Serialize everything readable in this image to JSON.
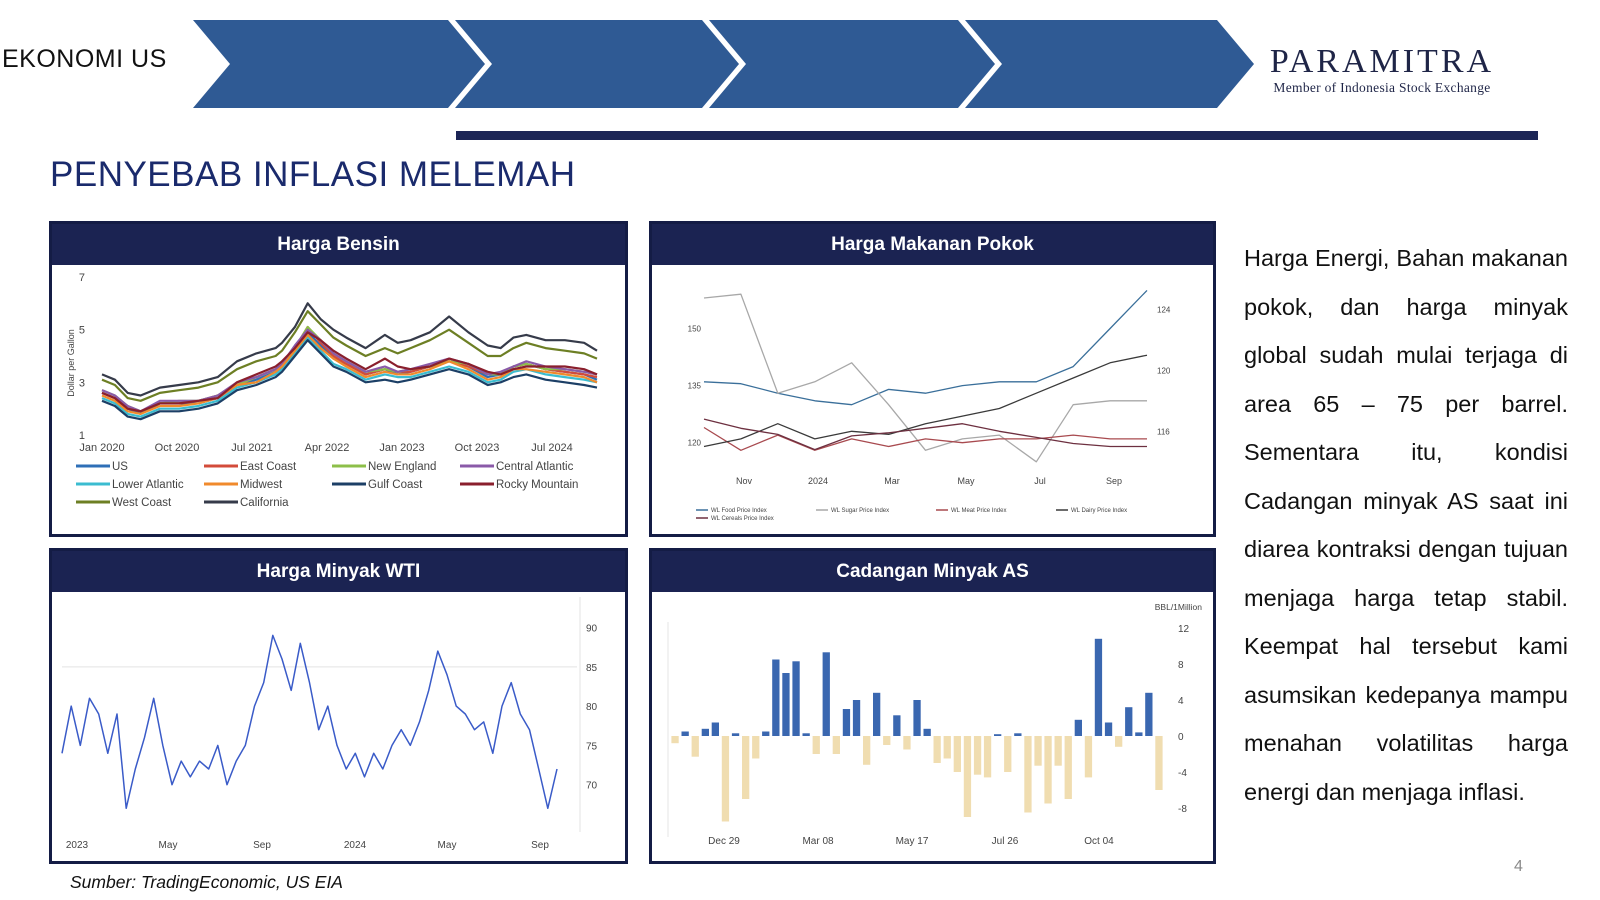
{
  "header": {
    "section": "EKONOMI US",
    "brand_name": "PARAMITRA",
    "brand_sub": "Member of Indonesia Stock Exchange",
    "chevron_color": "#2f5a94",
    "rule_color": "#1c2556"
  },
  "title": "PENYEBAB INFLASI MELEMAH",
  "panels": {
    "bensin": {
      "header": "Harga Bensin",
      "chart_data": {
        "type": "line",
        "ylabel": "Dollar per Gallon",
        "yticks": [
          "7",
          "5",
          "3",
          "1"
        ],
        "ylim": [
          1,
          7
        ],
        "xticks": [
          "Jan 2020",
          "Oct 2020",
          "Jul 2021",
          "Apr 2022",
          "Jan 2023",
          "Oct 2023",
          "Jul 2024"
        ],
        "x": [
          0,
          2,
          4,
          6,
          9,
          12,
          15,
          18,
          21,
          24,
          27,
          28,
          30,
          32,
          34,
          36,
          38,
          41,
          44,
          46,
          48,
          51,
          54,
          57,
          60,
          62,
          64,
          66,
          69,
          72,
          75,
          77
        ],
        "series": [
          {
            "name": "US",
            "color": "#2e6fb7",
            "values": [
              2.6,
              2.4,
              2.0,
              1.8,
              2.2,
              2.2,
              2.2,
              2.4,
              2.9,
              3.1,
              3.4,
              3.6,
              4.2,
              4.9,
              4.4,
              3.9,
              3.7,
              3.3,
              3.5,
              3.3,
              3.4,
              3.6,
              3.8,
              3.6,
              3.2,
              3.3,
              3.6,
              3.7,
              3.5,
              3.4,
              3.3,
              3.1
            ]
          },
          {
            "name": "East Coast",
            "color": "#d34b3a",
            "values": [
              2.6,
              2.4,
              2.0,
              1.9,
              2.2,
              2.2,
              2.3,
              2.5,
              2.9,
              3.2,
              3.5,
              3.7,
              4.3,
              5.1,
              4.5,
              4.0,
              3.7,
              3.3,
              3.5,
              3.4,
              3.4,
              3.6,
              3.8,
              3.6,
              3.3,
              3.3,
              3.6,
              3.7,
              3.5,
              3.4,
              3.3,
              3.2
            ]
          },
          {
            "name": "New England",
            "color": "#8dbf49",
            "values": [
              2.7,
              2.5,
              2.1,
              1.9,
              2.2,
              2.3,
              2.3,
              2.5,
              2.9,
              3.2,
              3.5,
              3.7,
              4.3,
              5.1,
              4.6,
              4.1,
              3.8,
              3.4,
              3.5,
              3.4,
              3.5,
              3.6,
              3.8,
              3.7,
              3.3,
              3.3,
              3.6,
              3.7,
              3.5,
              3.5,
              3.4,
              3.3
            ]
          },
          {
            "name": "Central Atlantic",
            "color": "#8a5aa8",
            "values": [
              2.7,
              2.5,
              2.1,
              1.9,
              2.3,
              2.3,
              2.3,
              2.5,
              3.0,
              3.2,
              3.5,
              3.7,
              4.4,
              5.0,
              4.6,
              4.1,
              3.8,
              3.4,
              3.6,
              3.4,
              3.5,
              3.7,
              3.9,
              3.7,
              3.3,
              3.4,
              3.6,
              3.8,
              3.6,
              3.5,
              3.4,
              3.3
            ]
          },
          {
            "name": "Lower Atlantic",
            "color": "#3bbcd0",
            "values": [
              2.4,
              2.2,
              1.8,
              1.7,
              2.0,
              2.0,
              2.1,
              2.3,
              2.8,
              3.0,
              3.3,
              3.5,
              4.1,
              4.7,
              4.2,
              3.7,
              3.5,
              3.1,
              3.3,
              3.2,
              3.2,
              3.4,
              3.6,
              3.4,
              3.0,
              3.1,
              3.4,
              3.5,
              3.3,
              3.2,
              3.1,
              3.0
            ]
          },
          {
            "name": "Midwest",
            "color": "#f08a2c",
            "values": [
              2.5,
              2.3,
              1.9,
              1.8,
              2.1,
              2.1,
              2.2,
              2.4,
              2.9,
              3.0,
              3.4,
              3.6,
              4.2,
              4.8,
              4.3,
              3.9,
              3.6,
              3.2,
              3.4,
              3.3,
              3.3,
              3.5,
              3.8,
              3.5,
              3.1,
              3.2,
              3.5,
              3.5,
              3.4,
              3.3,
              3.2,
              3.0
            ]
          },
          {
            "name": "Gulf Coast",
            "color": "#1c3f66",
            "values": [
              2.3,
              2.1,
              1.7,
              1.6,
              1.9,
              1.9,
              2.0,
              2.2,
              2.7,
              2.9,
              3.2,
              3.4,
              4.0,
              4.6,
              4.1,
              3.6,
              3.4,
              3.0,
              3.1,
              3.0,
              3.1,
              3.3,
              3.5,
              3.3,
              2.9,
              3.0,
              3.2,
              3.3,
              3.1,
              3.0,
              2.9,
              2.8
            ]
          },
          {
            "name": "Rocky Mountain",
            "color": "#8a1f2d",
            "values": [
              2.6,
              2.4,
              2.0,
              1.9,
              2.2,
              2.2,
              2.3,
              2.4,
              3.0,
              3.3,
              3.6,
              3.8,
              4.3,
              4.9,
              4.6,
              4.2,
              3.9,
              3.5,
              3.9,
              3.6,
              3.5,
              3.6,
              3.9,
              3.7,
              3.4,
              3.3,
              3.5,
              3.6,
              3.6,
              3.6,
              3.5,
              3.3
            ]
          },
          {
            "name": "West Coast",
            "color": "#6d7f24",
            "values": [
              3.1,
              2.9,
              2.4,
              2.3,
              2.6,
              2.7,
              2.8,
              3.0,
              3.5,
              3.8,
              4.0,
              4.2,
              4.9,
              5.7,
              5.2,
              4.7,
              4.4,
              4.0,
              4.3,
              4.1,
              4.3,
              4.6,
              5.0,
              4.5,
              4.0,
              4.0,
              4.3,
              4.5,
              4.3,
              4.2,
              4.1,
              3.9
            ]
          },
          {
            "name": "California",
            "color": "#363b4a",
            "values": [
              3.3,
              3.1,
              2.6,
              2.5,
              2.8,
              2.9,
              3.0,
              3.2,
              3.8,
              4.1,
              4.3,
              4.5,
              5.1,
              6.0,
              5.4,
              5.0,
              4.7,
              4.3,
              4.8,
              4.5,
              4.6,
              4.9,
              5.5,
              4.9,
              4.4,
              4.3,
              4.7,
              4.8,
              4.6,
              4.6,
              4.5,
              4.2
            ]
          }
        ]
      }
    },
    "makanan": {
      "header": "Harga Makanan Pokok",
      "chart_data": {
        "type": "line",
        "yticks_left": [
          "150",
          "135",
          "120"
        ],
        "yticks_right": [
          "124",
          "120",
          "116"
        ],
        "ylim_left": [
          111,
          163
        ],
        "ylim_right": [
          113,
          126
        ],
        "xticks": [
          "Nov",
          "2024",
          "Mar",
          "May",
          "Jul",
          "Sep"
        ],
        "x": [
          0,
          1,
          2,
          3,
          4,
          5,
          6,
          7,
          8,
          9,
          10,
          11,
          12
        ],
        "series": [
          {
            "name": "WL Food Price Index",
            "axis": "left",
            "color": "#3a6f9a",
            "values": [
              136,
              135.5,
              133,
              131,
              130,
              134,
              133,
              135,
              136,
              136,
              140,
              150,
              160
            ]
          },
          {
            "name": "WL Sugar Price Index",
            "axis": "left",
            "color": "#a8a8a8",
            "values": [
              158,
              159,
              133,
              136,
              141,
              130,
              118,
              121,
              122,
              115,
              130,
              131,
              131
            ]
          },
          {
            "name": "WL Meat Price Index",
            "axis": "left",
            "color": "#a84a4f",
            "values": [
              124,
              118,
              122,
              118,
              121,
              119,
              121,
              120,
              121,
              121,
              122,
              121,
              121
            ]
          },
          {
            "name": "WL Dairy Price Index",
            "axis": "right",
            "color": "#3a3a3a",
            "values": [
              115,
              115.5,
              116.5,
              115.5,
              116,
              115.8,
              116.5,
              117,
              117.5,
              118.5,
              119.5,
              120.5,
              121
            ]
          },
          {
            "name": "WL Cereals Price Index",
            "axis": "right",
            "color": "#6d3040",
            "values": [
              116.8,
              116.2,
              115.8,
              114.8,
              115.7,
              115.9,
              116.2,
              116.5,
              116.0,
              115.6,
              115.2,
              115.0,
              115.0
            ]
          }
        ]
      }
    },
    "wti": {
      "header": "Harga Minyak WTI",
      "chart_data": {
        "type": "line",
        "yticks": [
          "90",
          "85",
          "80",
          "75",
          "70"
        ],
        "ylim": [
          65,
          93
        ],
        "xticks": [
          "2023",
          "May",
          "Sep",
          "2024",
          "May",
          "Sep"
        ],
        "x": [
          0,
          1,
          2,
          3,
          4,
          5,
          6,
          7,
          8,
          9,
          10,
          11,
          12,
          13,
          14,
          15,
          16,
          17,
          18,
          19,
          20,
          21,
          22,
          23,
          24,
          25,
          26,
          27,
          28,
          29,
          30,
          31,
          32,
          33,
          34,
          35,
          36,
          37,
          38,
          39,
          40,
          41,
          42,
          43,
          44,
          45,
          46,
          47,
          48,
          49,
          50,
          51,
          52,
          53,
          54
        ],
        "series": [
          {
            "name": "WTI",
            "color": "#3a5bc8",
            "values": [
              74,
              80,
              75,
              81,
              79,
              74,
              79,
              67,
              72,
              76,
              81,
              75,
              70,
              73,
              71,
              73,
              72,
              75,
              70,
              73,
              75,
              80,
              83,
              89,
              86,
              82,
              88,
              83,
              77,
              80,
              75,
              72,
              74,
              71,
              74,
              72,
              75,
              77,
              75,
              78,
              82,
              87,
              84,
              80,
              79,
              77,
              78,
              74,
              80,
              83,
              79,
              77,
              72,
              67,
              72
            ]
          }
        ]
      }
    },
    "cadangan": {
      "header": "Cadangan Minyak AS",
      "chart_data": {
        "type": "bar",
        "unit": "BBL/1Million",
        "yticks": [
          "12",
          "8",
          "4",
          "0",
          "-4",
          "-8"
        ],
        "ylim": [
          -10,
          13
        ],
        "xticks": [
          "Dec 29",
          "Mar 08",
          "May 17",
          "Jul 26",
          "Oct 04"
        ],
        "positive_color": "#3a67b0",
        "negative_color": "#f0ddb0",
        "values": [
          -0.8,
          0.5,
          -2.3,
          0.8,
          1.5,
          -9.5,
          0.3,
          -7,
          -2.5,
          0.5,
          8.5,
          7,
          8.3,
          0.3,
          -2,
          9.3,
          -2,
          3,
          4,
          -3.2,
          4.8,
          -1,
          2.3,
          -1.5,
          4,
          0.8,
          -3,
          -2.5,
          -4,
          -9,
          -4.3,
          -4.6,
          0.2,
          -4,
          0.3,
          -8.5,
          -3.3,
          -7.5,
          -3.3,
          -7,
          1.8,
          -4.6,
          10.8,
          1.5,
          -1.2,
          3.2,
          0.4,
          4.8,
          -6
        ]
      }
    }
  },
  "description": "Harga Energi, Bahan makanan pokok, dan harga minyak global sudah mulai terjaga di area 65 – 75 per barrel. Sementara itu, kondisi Cadangan minyak AS saat ini diarea kontraksi dengan tujuan menjaga harga tetap stabil. Keempat hal tersebut kami asumsikan kedepanya mampu menahan volatilitas harga energi dan menjaga inflasi.",
  "source": "Sumber:  TradingEconomic, US EIA",
  "page_number": "4"
}
